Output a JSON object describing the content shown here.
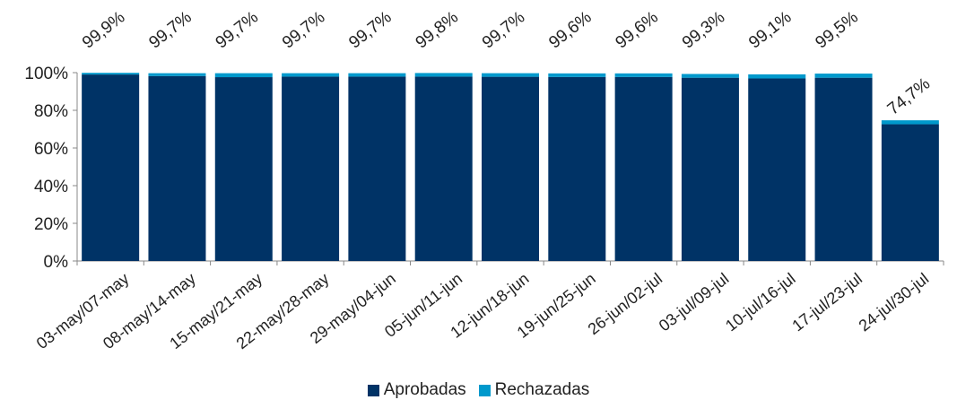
{
  "chart_data": {
    "type": "bar",
    "stacked": true,
    "categories": [
      "03-may/07-may",
      "08-may/14-may",
      "15-may/21-may",
      "22-may/28-may",
      "29-may/04-jun",
      "05-jun/11-jun",
      "12-jun/18-jun",
      "19-jun/25-jun",
      "26-jun/02-jul",
      "03-jul/09-jul",
      "10-jul/16-jul",
      "17-jul/23-jul",
      "24-jul/30-jul"
    ],
    "series": [
      {
        "name": "Aprobadas",
        "color": "#003366",
        "values": [
          99.0,
          98.2,
          97.6,
          97.9,
          97.9,
          97.9,
          97.8,
          97.7,
          97.7,
          97.3,
          96.9,
          97.3,
          72.6
        ]
      },
      {
        "name": "Rechazadas",
        "color": "#0099CC",
        "values": [
          0.9,
          1.5,
          2.1,
          1.8,
          1.8,
          1.9,
          1.9,
          1.9,
          1.9,
          2.0,
          2.2,
          2.2,
          2.1
        ]
      }
    ],
    "totals_labels": [
      "99,9%",
      "99,7%",
      "99,7%",
      "99,7%",
      "99,7%",
      "99,8%",
      "99,7%",
      "99,6%",
      "99,6%",
      "99,3%",
      "99,1%",
      "99,5%",
      "74,7%"
    ],
    "y_ticks": [
      "0%",
      "20%",
      "40%",
      "60%",
      "80%",
      "100%"
    ],
    "ylim": [
      0,
      100
    ],
    "grid": false,
    "legend_position": "bottom-center"
  },
  "legend": {
    "items": [
      {
        "label": "Aprobadas",
        "color": "#003366"
      },
      {
        "label": "Rechazadas",
        "color": "#0099CC"
      }
    ]
  }
}
